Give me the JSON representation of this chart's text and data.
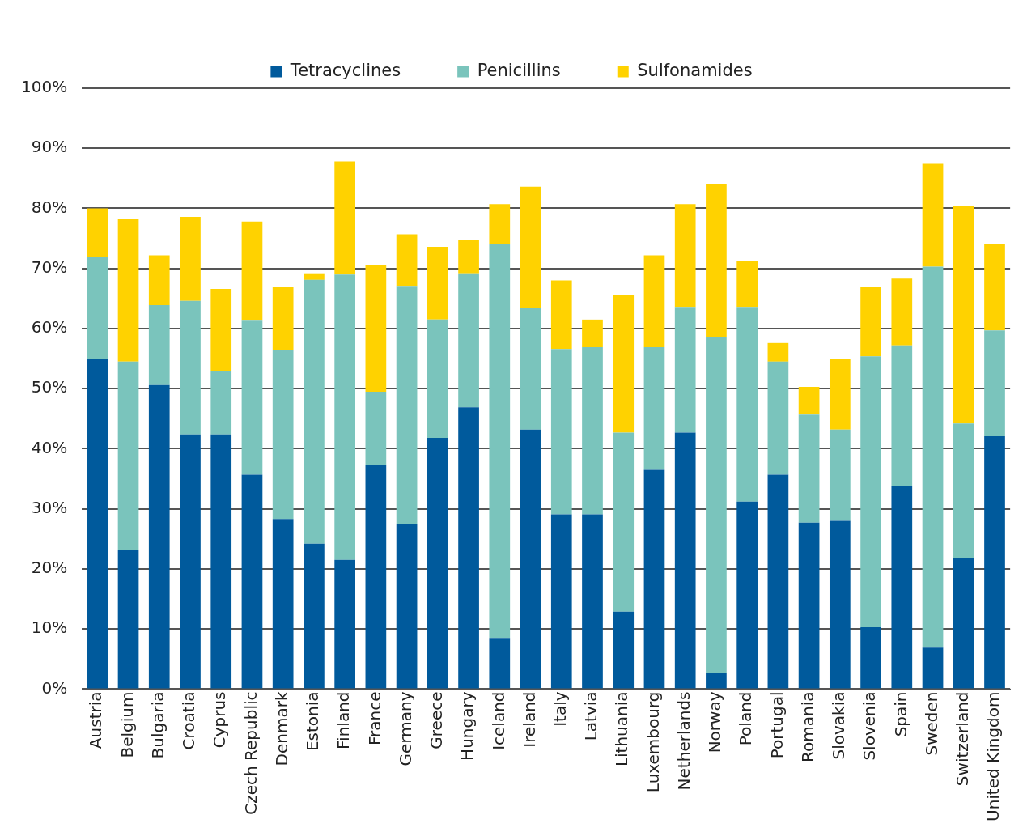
{
  "chart_data": {
    "type": "bar",
    "stacked": true,
    "legend": "top",
    "grid": "y",
    "categories": [
      "Austria",
      "Belgium",
      "Bulgaria",
      "Croatia",
      "Cyprus",
      "Czech Republic",
      "Denmark",
      "Estonia",
      "Finland",
      "France",
      "Germany",
      "Greece",
      "Hungary",
      "Iceland",
      "Ireland",
      "Italy",
      "Latvia",
      "Lithuania",
      "Luxembourg",
      "Netherlands",
      "Norway",
      "Poland",
      "Portugal",
      "Romania",
      "Slovakia",
      "Slovenia",
      "Spain",
      "Sweden",
      "Switzerland",
      "United Kingdom"
    ],
    "series": [
      {
        "name": "Tetracyclines",
        "color": "#005a9c",
        "values": [
          55,
          23.2,
          50.6,
          42.4,
          42.4,
          35.7,
          28.3,
          24.2,
          21.5,
          37.3,
          27.4,
          41.8,
          46.9,
          8.5,
          43.2,
          29.1,
          29.1,
          12.9,
          36.5,
          42.7,
          2.7,
          31.2,
          35.7,
          27.7,
          28,
          10.3,
          33.8,
          6.9,
          21.8,
          42.1
        ]
      },
      {
        "name": "Penicillins",
        "color": "#7ac4bc",
        "values": [
          17,
          31.3,
          13.3,
          22.2,
          10.6,
          25.6,
          28.2,
          43.9,
          47.5,
          12.2,
          39.7,
          19.7,
          22.3,
          65.5,
          20.2,
          27.5,
          27.8,
          29.8,
          20.4,
          20.9,
          55.9,
          32.4,
          18.8,
          18,
          15.2,
          45.1,
          23.4,
          63.4,
          22.4,
          17.6
        ]
      },
      {
        "name": "Sulfonamides",
        "color": "#ffd200",
        "values": [
          8,
          23.8,
          8.3,
          14,
          13.6,
          16.5,
          10.4,
          1.1,
          18.8,
          21.1,
          8.6,
          12.1,
          5.6,
          6.7,
          20.2,
          11.4,
          4.6,
          22.9,
          15.3,
          17.1,
          25.5,
          7.6,
          3.1,
          4.6,
          11.8,
          11.5,
          11.1,
          17.1,
          36.2,
          14.3
        ]
      }
    ],
    "ylim": [
      0,
      100
    ],
    "yticks": [
      {
        "value": 0,
        "label": "0%"
      },
      {
        "value": 10,
        "label": "10%"
      },
      {
        "value": 20,
        "label": "20%"
      },
      {
        "value": 30,
        "label": "30%"
      },
      {
        "value": 40,
        "label": "40%"
      },
      {
        "value": 50,
        "label": "50%"
      },
      {
        "value": 60,
        "label": "60%"
      },
      {
        "value": 70,
        "label": "70%"
      },
      {
        "value": 80,
        "label": "80%"
      },
      {
        "value": 90,
        "label": "90%"
      },
      {
        "value": 100,
        "label": "100%"
      }
    ]
  }
}
